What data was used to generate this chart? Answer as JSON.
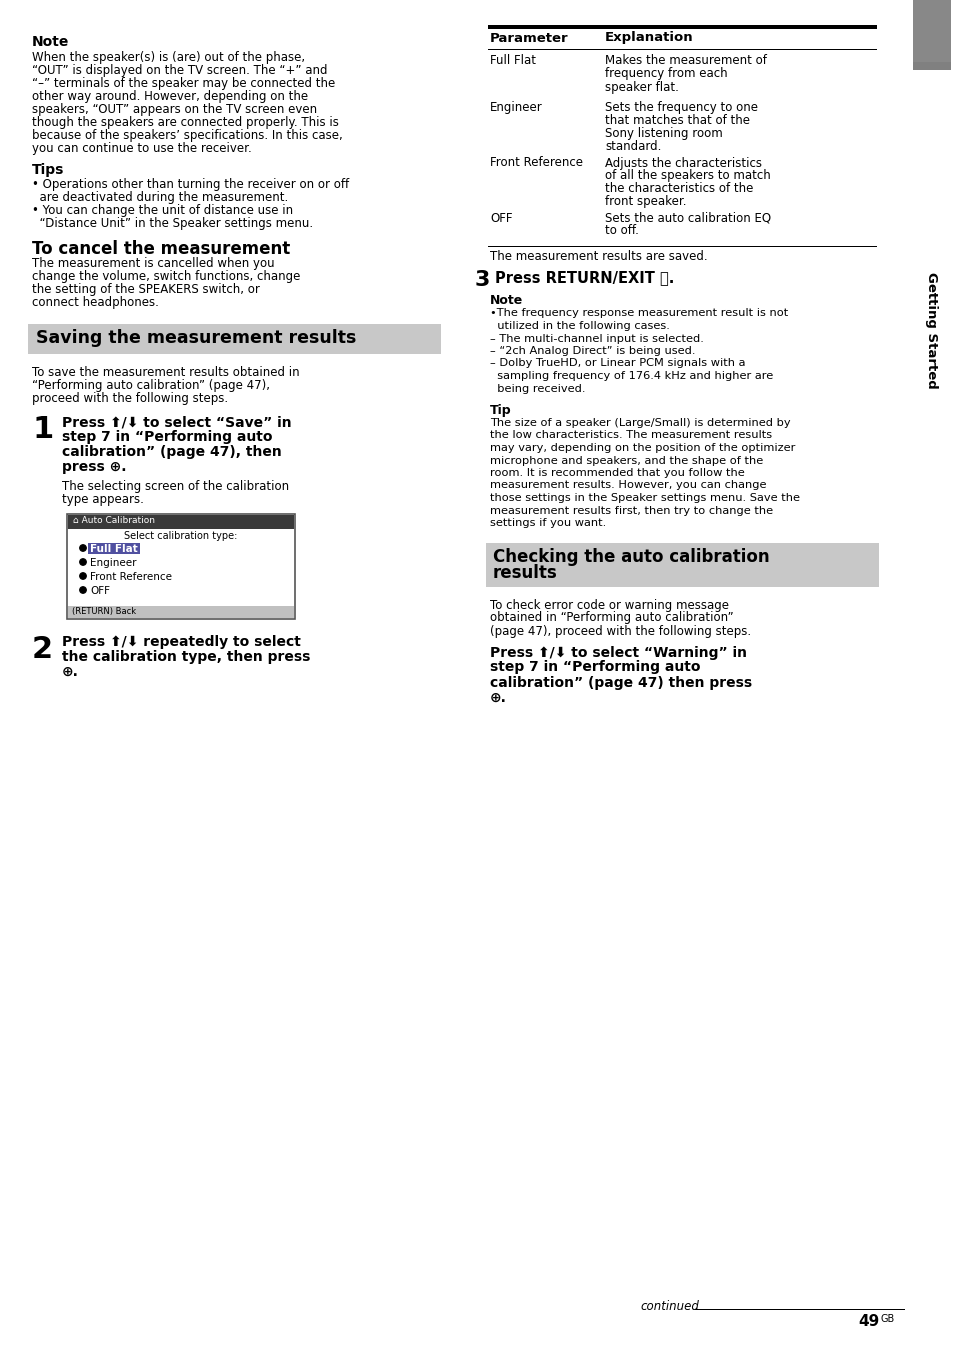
{
  "page_bg": "#ffffff",
  "sidebar_color": "#7a7a7a",
  "sidebar_text": "Getting Started",
  "note_label": "Note",
  "note_lines": [
    "When the speaker(s) is (are) out of the phase,",
    "“OUT” is displayed on the TV screen. The “+” and",
    "“–” terminals of the speaker may be connected the",
    "other way around. However, depending on the",
    "speakers, “OUT” appears on the TV screen even",
    "though the speakers are connected properly. This is",
    "because of the speakers’ specifications. In this case,",
    "you can continue to use the receiver."
  ],
  "tips_label": "Tips",
  "tips_lines": [
    "• Operations other than turning the receiver on or off",
    "  are deactivated during the measurement.",
    "• You can change the unit of distance use in",
    "  “Distance Unit” in the Speaker settings menu."
  ],
  "cancel_heading": "To cancel the measurement",
  "cancel_lines": [
    "The measurement is cancelled when you",
    "change the volume, switch functions, change",
    "the setting of the SPEAKERS switch, or",
    "connect headphones."
  ],
  "section1_title": "Saving the measurement results",
  "section1_intro": [
    "To save the measurement results obtained in",
    "“Performing auto calibration” (page 47),",
    "proceed with the following steps."
  ],
  "step1_lines": [
    "Press ⬆/⬇ to select “Save” in",
    "step 7 in “Performing auto",
    "calibration” (page 47), then",
    "press ⊕."
  ],
  "step1_sub": [
    "The selecting screen of the calibration",
    "type appears."
  ],
  "step2_lines": [
    "Press ⬆/⬇ repeatedly to select",
    "the calibration type, then press",
    "⊕."
  ],
  "table_params": [
    "Full Flat",
    "Engineer",
    "Front Reference",
    "OFF"
  ],
  "table_exps": [
    [
      "Makes the measurement of",
      "frequency from each",
      "speaker flat."
    ],
    [
      "Sets the frequency to one",
      "that matches that of the",
      "Sony listening room",
      "standard."
    ],
    [
      "Adjusts the characteristics",
      "of all the speakers to match",
      "the characteristics of the",
      "front speaker."
    ],
    [
      "Sets the auto calibration EQ",
      "to off."
    ]
  ],
  "saved_text": "The measurement results are saved.",
  "step3_text": "Press RETURN/EXIT ⤥.",
  "right_note_label": "Note",
  "right_note_lines": [
    "•The frequency response measurement result is not",
    "  utilized in the following cases.",
    "– The multi-channel input is selected.",
    "– “2ch Analog Direct” is being used.",
    "– Dolby TrueHD, or Linear PCM signals with a",
    "  sampling frequency of 176.4 kHz and higher are",
    "  being received."
  ],
  "tip_label": "Tip",
  "tip_lines": [
    "The size of a speaker (Large/Small) is determined by",
    "the low characteristics. The measurement results",
    "may vary, depending on the position of the optimizer",
    "microphone and speakers, and the shape of the",
    "room. It is recommended that you follow the",
    "measurement results. However, you can change",
    "those settings in the Speaker settings menu. Save the",
    "measurement results first, then try to change the",
    "settings if you want."
  ],
  "section2_title_line1": "Checking the auto calibration",
  "section2_title_line2": "results",
  "section2_intro": [
    "To check error code or warning message",
    "obtained in “Performing auto calibration”",
    "(page 47), proceed with the following steps."
  ],
  "step_warn_lines": [
    "Press ⬆/⬇ to select “Warning” in",
    "step 7 in “Performing auto",
    "calibration” (page 47) then press",
    "⊕."
  ],
  "continued": "continued",
  "page_num": "49",
  "page_num_super": "GB",
  "screen_options": [
    "Full Flat",
    "Engineer",
    "Front Reference",
    "OFF"
  ],
  "screen_title": "⌂ Auto Calibration",
  "screen_label": "Select calibration type:"
}
